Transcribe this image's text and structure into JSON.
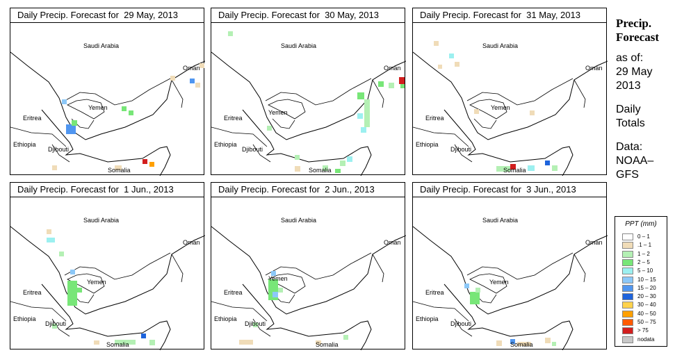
{
  "panels": [
    {
      "title": "Daily Precip. Forecast for  29 May, 2013"
    },
    {
      "title": "Daily Precip. Forecast for  30 May, 2013"
    },
    {
      "title": "Daily Precip. Forecast for  31 May, 2013"
    },
    {
      "title": "Daily Precip. Forecast for  1 Jun., 2013"
    },
    {
      "title": "Daily Precip. Forecast for  2 Jun., 2013"
    },
    {
      "title": "Daily Precip. Forecast for  3 Jun., 2013"
    }
  ],
  "map_labels": {
    "saudi": "Saudi Arabia",
    "oman": "Oman",
    "yemen": "Yemen",
    "eritrea": "Eritrea",
    "ethiopia": "Ethiopia",
    "djibouti": "Djibouti",
    "somalia": "Somalia"
  },
  "side": {
    "title1": "Precip.",
    "title2": "Forecast",
    "asof": "as of:",
    "date1": "29 May",
    "date2": "2013",
    "daily1": "Daily",
    "daily2": "Totals",
    "data1": "Data:",
    "data2": "NOAA–",
    "data3": "GFS"
  },
  "legend": {
    "title": "PPT (mm)",
    "items": [
      {
        "label": "0 – 1",
        "color": "#ffffff"
      },
      {
        "label": ".1 – 1",
        "color": "#f0dcb8"
      },
      {
        "label": "1 – 2",
        "color": "#b4f0b4"
      },
      {
        "label": "2 – 5",
        "color": "#78e678"
      },
      {
        "label": "5 – 10",
        "color": "#9cf0f0"
      },
      {
        "label": "10 – 15",
        "color": "#8cc8f8"
      },
      {
        "label": "15 – 20",
        "color": "#5096f0"
      },
      {
        "label": "20 – 30",
        "color": "#1e64dc"
      },
      {
        "label": "30 – 40",
        "color": "#ffd24c"
      },
      {
        "label": "40 – 50",
        "color": "#ffa000"
      },
      {
        "label": "50 – 75",
        "color": "#ff5a00"
      },
      {
        "label": "> 75",
        "color": "#d21e1e"
      },
      {
        "label": "nodata",
        "color": "#c8c8c8"
      }
    ]
  }
}
